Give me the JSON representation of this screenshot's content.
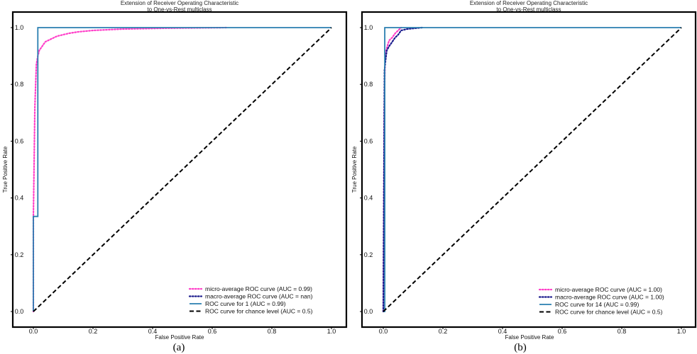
{
  "chart_data": [
    {
      "type": "line",
      "title": "Extension of Receiver Operating Characteristic\nto One-vs-Rest multiclass",
      "xlabel": "False Positive Rate",
      "ylabel": "True Positive Rate",
      "xlim": [
        0,
        1
      ],
      "ylim": [
        0,
        1
      ],
      "x_ticks": [
        "0.0",
        "0.2",
        "0.4",
        "0.6",
        "0.8",
        "1.0"
      ],
      "y_ticks": [
        "0.0",
        "0.2",
        "0.4",
        "0.6",
        "0.8",
        "1.0"
      ],
      "grid": false,
      "legend_position": "lower-right",
      "caption": "(a)",
      "series": [
        {
          "name": "micro-average ROC curve (AUC = 0.99)",
          "color": "#ff3ec8",
          "dash": "dotted",
          "x": [
            0.0,
            0.0,
            0.005,
            0.01,
            0.015,
            0.02,
            0.03,
            0.04,
            0.06,
            0.08,
            0.1,
            0.12,
            0.15,
            0.2,
            0.3,
            0.45,
            0.65
          ],
          "y": [
            0.0,
            0.33,
            0.72,
            0.87,
            0.9,
            0.92,
            0.935,
            0.95,
            0.96,
            0.97,
            0.975,
            0.98,
            0.985,
            0.99,
            0.995,
            0.998,
            1.0
          ]
        },
        {
          "name": "macro-average ROC curve (AUC = nan)",
          "color": "#1a1a8c",
          "dash": "dotted",
          "x": [],
          "y": []
        },
        {
          "name": "ROC curve for 1 (AUC = 0.99)",
          "color": "#2a7fb0",
          "dash": "solid",
          "x": [
            0.0,
            0.0,
            0.015,
            0.015,
            0.015,
            1.0
          ],
          "y": [
            0.0,
            0.335,
            0.335,
            0.35,
            1.0,
            1.0
          ]
        },
        {
          "name": "ROC curve for chance level (AUC = 0.5)",
          "color": "#000000",
          "dash": "dashed",
          "x": [
            0.0,
            1.0
          ],
          "y": [
            0.0,
            1.0
          ]
        }
      ]
    },
    {
      "type": "line",
      "title": "Extension of Receiver Operating Characteristic\nto One-vs-Rest multiclass",
      "xlabel": "False Positive Rate",
      "ylabel": "True Positive Rate",
      "xlim": [
        0,
        1
      ],
      "ylim": [
        0,
        1
      ],
      "x_ticks": [
        "0.0",
        "0.2",
        "0.4",
        "0.6",
        "0.8",
        "1.0"
      ],
      "y_ticks": [
        "0.0",
        "0.2",
        "0.4",
        "0.6",
        "0.8",
        "1.0"
      ],
      "grid": false,
      "legend_position": "lower-right",
      "caption": "(b)",
      "series": [
        {
          "name": "micro-average ROC curve (AUC = 1.00)",
          "color": "#ff3ec8",
          "dash": "dotted",
          "x": [
            0.0,
            0.003,
            0.006,
            0.01,
            0.015,
            0.02,
            0.03,
            0.04,
            0.05,
            0.06
          ],
          "y": [
            0.0,
            0.7,
            0.88,
            0.92,
            0.94,
            0.955,
            0.965,
            0.98,
            0.99,
            1.0
          ]
        },
        {
          "name": "macro-average ROC curve (AUC = 1.00)",
          "color": "#1a1a8c",
          "dash": "dotted",
          "x": [
            0.0,
            0.004,
            0.008,
            0.012,
            0.02,
            0.03,
            0.04,
            0.05,
            0.06,
            0.08,
            0.1,
            0.13
          ],
          "y": [
            0.0,
            0.85,
            0.89,
            0.92,
            0.935,
            0.95,
            0.965,
            0.975,
            0.99,
            0.995,
            0.997,
            1.0
          ]
        },
        {
          "name": "ROC curve for 14 (AUC = 0.99)",
          "color": "#2a7fb0",
          "dash": "solid",
          "x": [
            0.0,
            0.005,
            0.005,
            1.0
          ],
          "y": [
            0.0,
            0.0,
            1.0,
            1.0
          ]
        },
        {
          "name": "ROC curve for chance level (AUC = 0.5)",
          "color": "#000000",
          "dash": "dashed",
          "x": [
            0.0,
            1.0
          ],
          "y": [
            0.0,
            1.0
          ]
        }
      ]
    }
  ]
}
